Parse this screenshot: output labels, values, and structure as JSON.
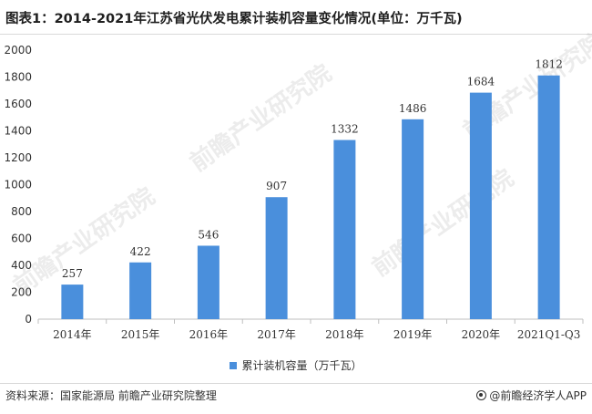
{
  "title": "图表1：2014-2021年江苏省光伏发电累计装机容量变化情况(单位：万千瓦)",
  "legend_label": "累计装机容量（万千瓦）",
  "source": "资料来源：国家能源局 前瞻产业研究院整理",
  "brand": "@前瞻经济学人APP",
  "watermark": "前瞻产业研究院",
  "colors": {
    "bar": "#4a8fdc",
    "axis": "#bfbfbf",
    "text": "#333333"
  },
  "chart_data": {
    "type": "bar",
    "categories": [
      "2014年",
      "2015年",
      "2016年",
      "2017年",
      "2018年",
      "2019年",
      "2020年",
      "2021Q1-Q3"
    ],
    "series": [
      {
        "name": "累计装机容量（万千瓦）",
        "values": [
          257,
          422,
          546,
          907,
          1332,
          1486,
          1684,
          1812
        ]
      }
    ],
    "data_labels": [
      "257",
      "422",
      "546",
      "907",
      "1332",
      "1486",
      "1684",
      "1812"
    ],
    "ylim": [
      0,
      2000
    ],
    "yticks": [
      0,
      200,
      400,
      600,
      800,
      1000,
      1200,
      1400,
      1600,
      1800,
      2000
    ],
    "ytick_labels": [
      "0",
      "200",
      "400",
      "600",
      "800",
      "1000",
      "1200",
      "1400",
      "1600",
      "1800",
      "2000"
    ],
    "xlabel": "",
    "ylabel": "",
    "grid": false,
    "legend_position": "bottom"
  }
}
